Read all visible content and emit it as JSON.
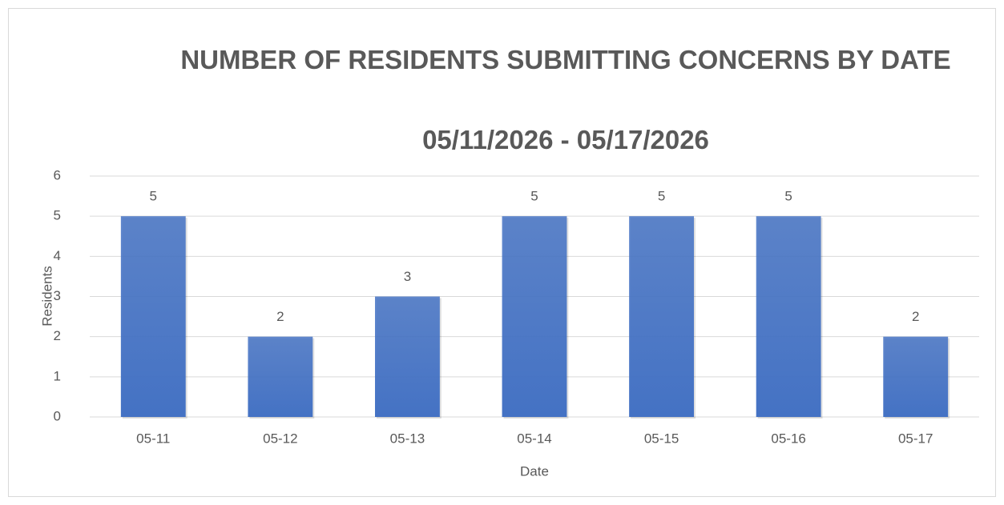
{
  "chart_data": {
    "type": "bar",
    "title": "NUMBER OF RESIDENTS SUBMITTING CONCERNS BY DATE",
    "subtitle": "05/11/2026 - 05/17/2026",
    "x_label": "Date",
    "y_label": "Residents",
    "categories": [
      "05-11",
      "05-12",
      "05-13",
      "05-14",
      "05-15",
      "05-16",
      "05-17"
    ],
    "values": [
      5,
      2,
      3,
      5,
      5,
      5,
      2
    ],
    "color": "#4472c4",
    "ylim": [
      0,
      6
    ],
    "yticks": [
      0,
      1,
      2,
      3,
      4,
      5,
      6
    ],
    "grid": true
  }
}
